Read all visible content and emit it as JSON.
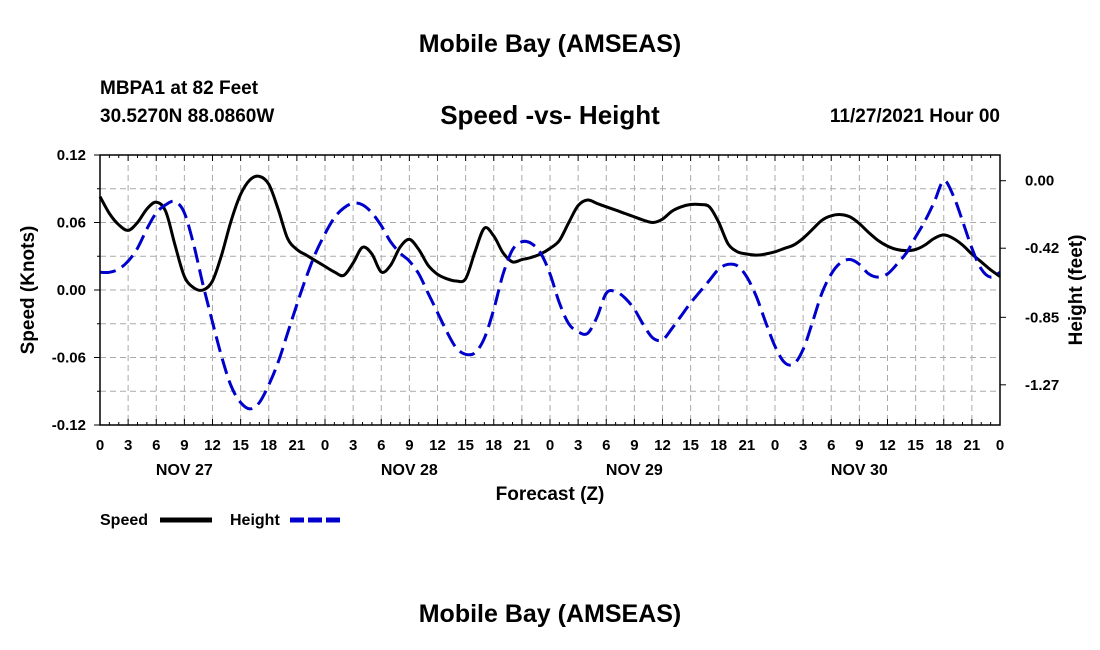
{
  "header": {
    "main_title": "Mobile Bay (AMSEAS)",
    "station": "MBPA1 at 82 Feet",
    "coordinates": "30.5270N  88.0860W",
    "chart_title": "Speed -vs- Height",
    "datetime": "11/27/2021 Hour 00"
  },
  "footer": {
    "repeat_title": "Mobile Bay (AMSEAS)"
  },
  "legend": {
    "speed_label": "Speed",
    "height_label": "Height"
  },
  "colors": {
    "speed": "#000000",
    "height": "#0000cc",
    "grid": "#aaaaaa"
  },
  "chart_data": {
    "type": "line",
    "title": "Speed -vs- Height",
    "xlabel": "Forecast (Z)",
    "ylabel_left": "Speed (Knots)",
    "ylabel_right": "Height (feet)",
    "x_unit": "hours from 11/27/2021 00Z",
    "xlim": [
      0,
      96
    ],
    "ylim_left": [
      -0.12,
      0.12
    ],
    "ylim_right": [
      -1.52,
      0.16
    ],
    "left_ticks": [
      "0.12",
      "0.06",
      "0.00",
      "-0.06",
      "-0.12"
    ],
    "left_tick_values": [
      0.12,
      0.06,
      0.0,
      -0.06,
      -0.12
    ],
    "right_ticks": [
      "0.00",
      "-0.42",
      "-0.85",
      "-1.27"
    ],
    "right_tick_values": [
      0.0,
      -0.42,
      -0.85,
      -1.27
    ],
    "x_ticks": [
      "0",
      "3",
      "6",
      "9",
      "12",
      "15",
      "18",
      "21",
      "0",
      "3",
      "6",
      "9",
      "12",
      "15",
      "18",
      "21",
      "0",
      "3",
      "6",
      "9",
      "12",
      "15",
      "18",
      "21",
      "0",
      "3",
      "6",
      "9",
      "12",
      "15",
      "18",
      "21",
      "0"
    ],
    "day_labels": [
      {
        "label": "NOV 27",
        "hour": 9
      },
      {
        "label": "NOV 28",
        "hour": 33
      },
      {
        "label": "NOV 29",
        "hour": 57
      },
      {
        "label": "NOV 30",
        "hour": 81
      }
    ],
    "series": [
      {
        "name": "Speed",
        "axis": "left",
        "x": [
          0,
          1,
          2,
          3,
          4,
          5,
          6,
          7,
          8,
          9,
          10,
          11,
          12,
          13,
          14,
          15,
          16,
          17,
          18,
          19,
          20,
          21,
          22,
          23,
          24,
          25,
          26,
          27,
          28,
          29,
          30,
          31,
          32,
          33,
          34,
          35,
          36,
          37,
          38,
          39,
          40,
          41,
          42,
          43,
          44,
          45,
          46,
          47,
          48,
          49,
          50,
          51,
          52,
          53,
          54,
          55,
          56,
          57,
          58,
          59,
          60,
          61,
          62,
          63,
          64,
          65,
          66,
          67,
          68,
          69,
          70,
          71,
          72,
          73,
          74,
          75,
          76,
          77,
          78,
          79,
          80,
          81,
          82,
          83,
          84,
          85,
          86,
          87,
          88,
          89,
          90,
          91,
          92,
          93,
          94,
          95,
          96
        ],
        "values": [
          0.083,
          0.068,
          0.058,
          0.053,
          0.06,
          0.072,
          0.078,
          0.07,
          0.04,
          0.012,
          0.002,
          0.0,
          0.008,
          0.032,
          0.062,
          0.085,
          0.098,
          0.101,
          0.094,
          0.072,
          0.046,
          0.036,
          0.031,
          0.026,
          0.021,
          0.016,
          0.013,
          0.024,
          0.038,
          0.032,
          0.016,
          0.022,
          0.038,
          0.045,
          0.036,
          0.022,
          0.014,
          0.01,
          0.008,
          0.01,
          0.034,
          0.055,
          0.048,
          0.033,
          0.025,
          0.027,
          0.029,
          0.032,
          0.037,
          0.044,
          0.06,
          0.075,
          0.08,
          0.077,
          0.074,
          0.071,
          0.068,
          0.065,
          0.062,
          0.06,
          0.063,
          0.07,
          0.074,
          0.076,
          0.076,
          0.074,
          0.06,
          0.041,
          0.034,
          0.032,
          0.031,
          0.032,
          0.034,
          0.037,
          0.04,
          0.046,
          0.054,
          0.062,
          0.066,
          0.067,
          0.065,
          0.059,
          0.051,
          0.044,
          0.039,
          0.036,
          0.035,
          0.036,
          0.04,
          0.046,
          0.049,
          0.046,
          0.04,
          0.032,
          0.025,
          0.018,
          0.012
        ]
      },
      {
        "name": "Height",
        "axis": "right",
        "x": [
          0,
          1,
          2,
          3,
          4,
          5,
          6,
          7,
          8,
          9,
          10,
          11,
          12,
          13,
          14,
          15,
          16,
          17,
          18,
          19,
          20,
          21,
          22,
          23,
          24,
          25,
          26,
          27,
          28,
          29,
          30,
          31,
          32,
          33,
          34,
          35,
          36,
          37,
          38,
          39,
          40,
          41,
          42,
          43,
          44,
          45,
          46,
          47,
          48,
          49,
          50,
          51,
          52,
          53,
          54,
          55,
          56,
          57,
          58,
          59,
          60,
          61,
          62,
          63,
          64,
          65,
          66,
          67,
          68,
          69,
          70,
          71,
          72,
          73,
          74,
          75,
          76,
          77,
          78,
          79,
          80,
          81,
          82,
          83,
          84,
          85,
          86,
          87,
          88,
          89,
          90,
          91,
          92,
          93,
          94,
          95,
          96
        ],
        "values": [
          -0.57,
          -0.57,
          -0.55,
          -0.5,
          -0.42,
          -0.3,
          -0.2,
          -0.15,
          -0.13,
          -0.2,
          -0.4,
          -0.65,
          -0.88,
          -1.1,
          -1.28,
          -1.38,
          -1.42,
          -1.38,
          -1.27,
          -1.13,
          -0.95,
          -0.77,
          -0.6,
          -0.45,
          -0.33,
          -0.23,
          -0.17,
          -0.14,
          -0.15,
          -0.2,
          -0.28,
          -0.38,
          -0.45,
          -0.5,
          -0.58,
          -0.7,
          -0.82,
          -0.94,
          -1.04,
          -1.08,
          -1.07,
          -0.98,
          -0.8,
          -0.58,
          -0.43,
          -0.38,
          -0.39,
          -0.45,
          -0.58,
          -0.76,
          -0.89,
          -0.94,
          -0.95,
          -0.85,
          -0.7,
          -0.69,
          -0.73,
          -0.8,
          -0.9,
          -0.98,
          -0.99,
          -0.92,
          -0.84,
          -0.76,
          -0.69,
          -0.62,
          -0.55,
          -0.52,
          -0.53,
          -0.6,
          -0.72,
          -0.88,
          -1.03,
          -1.13,
          -1.14,
          -1.05,
          -0.88,
          -0.7,
          -0.58,
          -0.51,
          -0.49,
          -0.52,
          -0.58,
          -0.6,
          -0.58,
          -0.52,
          -0.45,
          -0.35,
          -0.25,
          -0.13,
          0.0,
          -0.09,
          -0.25,
          -0.42,
          -0.55,
          -0.6,
          -0.57
        ]
      }
    ]
  }
}
